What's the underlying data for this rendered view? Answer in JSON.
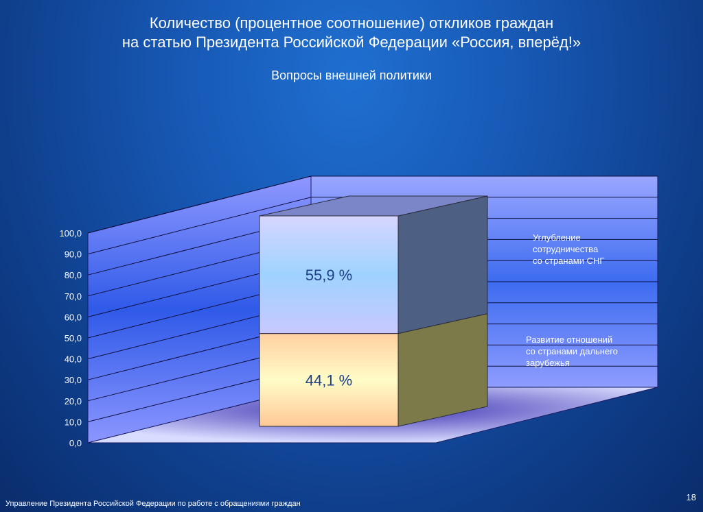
{
  "slide": {
    "title_line1": "Количество (процентное соотношение) откликов граждан",
    "title_line2": "на статью Президента Российской Федерации «Россия, вперёд!»",
    "subtitle": "Вопросы внешней политики",
    "footer": "Управление Президента Российской Федерации по работе с обращениями граждан",
    "page_number": "18"
  },
  "chart_data": {
    "type": "bar",
    "stacked": true,
    "three_d": true,
    "categories": [
      ""
    ],
    "ylim": [
      0,
      100
    ],
    "yticks": [
      "0,0",
      "10,0",
      "20,0",
      "30,0",
      "40,0",
      "50,0",
      "60,0",
      "70,0",
      "80,0",
      "90,0",
      "100,0"
    ],
    "grid": true,
    "legend_position": "right",
    "series": [
      {
        "name": "Развитие отношений со странами дальнего зарубежья",
        "legend_lines": [
          "Развитие отношений",
          "со странами дальнего",
          "зарубежья"
        ],
        "values": [
          44.1
        ],
        "label": "44,1 %",
        "color": "#fff8c0"
      },
      {
        "name": "Углубление сотрудничества со странами СНГ",
        "legend_lines": [
          "Углубление",
          "сотрудничества",
          "со странами СНГ"
        ],
        "values": [
          55.9
        ],
        "label": "55,9 %",
        "color": "#a8d4ff"
      }
    ]
  }
}
